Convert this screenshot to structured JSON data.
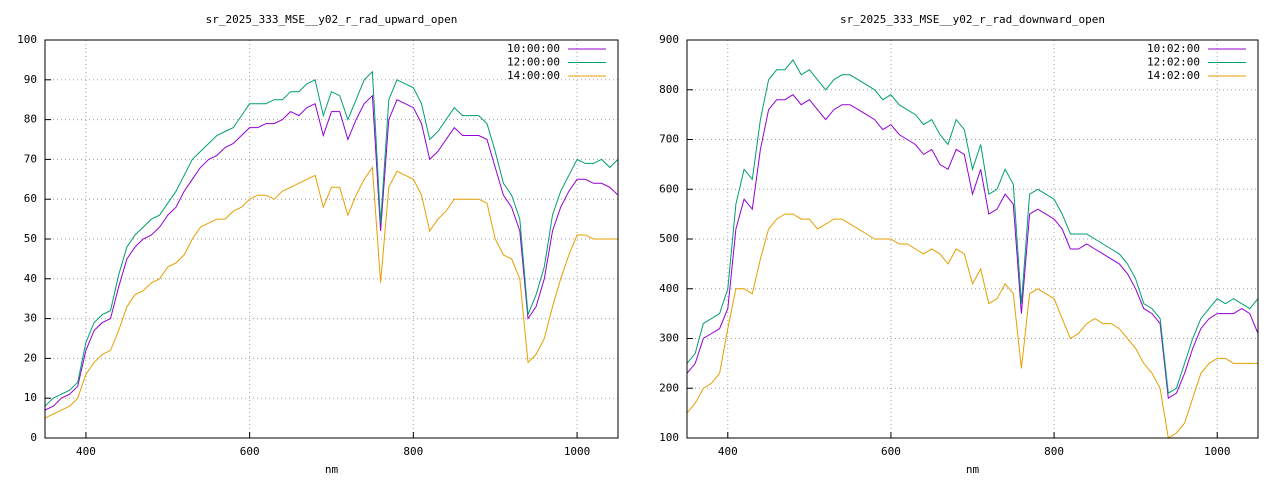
{
  "chart_data": [
    {
      "type": "line",
      "title": "sr_2025_333_MSE__y02_r_rad_upward_open",
      "x_label": "nm",
      "x": [
        350,
        360,
        370,
        380,
        390,
        400,
        410,
        420,
        430,
        440,
        450,
        460,
        470,
        480,
        490,
        500,
        510,
        520,
        530,
        540,
        550,
        560,
        570,
        580,
        590,
        600,
        610,
        620,
        630,
        640,
        650,
        660,
        670,
        680,
        690,
        700,
        710,
        720,
        730,
        740,
        750,
        760,
        770,
        780,
        790,
        800,
        810,
        820,
        830,
        840,
        850,
        860,
        870,
        880,
        890,
        900,
        910,
        920,
        930,
        940,
        950,
        960,
        970,
        980,
        990,
        1000,
        1010,
        1020,
        1030,
        1040,
        1050
      ],
      "xlim": [
        350,
        1050
      ],
      "xticks": [
        400,
        600,
        800,
        1000
      ],
      "ylim": [
        0,
        100
      ],
      "yticks": [
        0,
        10,
        20,
        30,
        40,
        50,
        60,
        70,
        80,
        90,
        100
      ],
      "grid": true,
      "legend": "top-right",
      "series": [
        {
          "name": "10:00:00",
          "color": "#9400d3",
          "values": [
            7,
            8,
            10,
            11,
            13,
            22,
            27,
            29,
            30,
            38,
            45,
            48,
            50,
            51,
            53,
            56,
            58,
            62,
            65,
            68,
            70,
            71,
            73,
            74,
            76,
            78,
            78,
            79,
            79,
            80,
            82,
            81,
            83,
            84,
            76,
            82,
            82,
            75,
            80,
            84,
            86,
            52,
            80,
            85,
            84,
            83,
            79,
            70,
            72,
            75,
            78,
            76,
            76,
            76,
            75,
            68,
            61,
            58,
            52,
            30,
            33,
            40,
            52,
            58,
            62,
            65,
            65,
            64,
            64,
            63,
            61
          ]
        },
        {
          "name": "12:00:00",
          "color": "#009e73",
          "values": [
            8,
            10,
            11,
            12,
            14,
            24,
            29,
            31,
            32,
            41,
            48,
            51,
            53,
            55,
            56,
            59,
            62,
            66,
            70,
            72,
            74,
            76,
            77,
            78,
            81,
            84,
            84,
            84,
            85,
            85,
            87,
            87,
            89,
            90,
            81,
            87,
            86,
            80,
            85,
            90,
            92,
            54,
            85,
            90,
            89,
            88,
            84,
            75,
            77,
            80,
            83,
            81,
            81,
            81,
            79,
            72,
            64,
            61,
            55,
            31,
            36,
            43,
            56,
            62,
            66,
            70,
            69,
            69,
            70,
            68,
            70
          ]
        },
        {
          "name": "14:00:00",
          "color": "#e69f00",
          "values": [
            5,
            6,
            7,
            8,
            10,
            16,
            19,
            21,
            22,
            27,
            33,
            36,
            37,
            39,
            40,
            43,
            44,
            46,
            50,
            53,
            54,
            55,
            55,
            57,
            58,
            60,
            61,
            61,
            60,
            62,
            63,
            64,
            65,
            66,
            58,
            63,
            63,
            56,
            61,
            65,
            68,
            39,
            63,
            67,
            66,
            65,
            61,
            52,
            55,
            57,
            60,
            60,
            60,
            60,
            59,
            50,
            46,
            45,
            40,
            19,
            21,
            25,
            33,
            40,
            46,
            51,
            51,
            50,
            50,
            50,
            50
          ]
        }
      ]
    },
    {
      "type": "line",
      "title": "sr_2025_333_MSE__y02_r_rad_downward_open",
      "x_label": "nm",
      "x": [
        350,
        360,
        370,
        380,
        390,
        400,
        410,
        420,
        430,
        440,
        450,
        460,
        470,
        480,
        490,
        500,
        510,
        520,
        530,
        540,
        550,
        560,
        570,
        580,
        590,
        600,
        610,
        620,
        630,
        640,
        650,
        660,
        670,
        680,
        690,
        700,
        710,
        720,
        730,
        740,
        750,
        760,
        770,
        780,
        790,
        800,
        810,
        820,
        830,
        840,
        850,
        860,
        870,
        880,
        890,
        900,
        910,
        920,
        930,
        940,
        950,
        960,
        970,
        980,
        990,
        1000,
        1010,
        1020,
        1030,
        1040,
        1050
      ],
      "xlim": [
        350,
        1050
      ],
      "xticks": [
        400,
        600,
        800,
        1000
      ],
      "ylim": [
        100,
        900
      ],
      "yticks": [
        100,
        200,
        300,
        400,
        500,
        600,
        700,
        800,
        900
      ],
      "grid": true,
      "legend": "top-right",
      "series": [
        {
          "name": "10:02:00",
          "color": "#9400d3",
          "values": [
            230,
            250,
            300,
            310,
            320,
            360,
            520,
            580,
            560,
            680,
            760,
            780,
            780,
            790,
            770,
            780,
            760,
            740,
            760,
            770,
            770,
            760,
            750,
            740,
            720,
            730,
            710,
            700,
            690,
            670,
            680,
            650,
            640,
            680,
            670,
            590,
            640,
            550,
            560,
            590,
            570,
            350,
            550,
            560,
            550,
            540,
            520,
            480,
            480,
            490,
            480,
            470,
            460,
            450,
            430,
            400,
            360,
            350,
            330,
            180,
            190,
            230,
            280,
            320,
            340,
            350,
            350,
            350,
            360,
            350,
            310
          ]
        },
        {
          "name": "12:02:00",
          "color": "#009e73",
          "values": [
            250,
            270,
            330,
            340,
            350,
            400,
            570,
            640,
            620,
            740,
            820,
            840,
            840,
            860,
            830,
            840,
            820,
            800,
            820,
            830,
            830,
            820,
            810,
            800,
            780,
            790,
            770,
            760,
            750,
            730,
            740,
            710,
            690,
            740,
            720,
            640,
            690,
            590,
            600,
            640,
            610,
            370,
            590,
            600,
            590,
            580,
            550,
            510,
            510,
            510,
            500,
            490,
            480,
            470,
            450,
            420,
            370,
            360,
            340,
            190,
            200,
            250,
            300,
            340,
            360,
            380,
            370,
            380,
            370,
            360,
            380
          ]
        },
        {
          "name": "14:02:00",
          "color": "#e69f00",
          "values": [
            150,
            170,
            200,
            210,
            230,
            320,
            400,
            400,
            390,
            460,
            520,
            540,
            550,
            550,
            540,
            540,
            520,
            530,
            540,
            540,
            530,
            520,
            510,
            500,
            500,
            500,
            490,
            490,
            480,
            470,
            480,
            470,
            450,
            480,
            470,
            410,
            440,
            370,
            380,
            410,
            390,
            240,
            390,
            400,
            390,
            380,
            340,
            300,
            310,
            330,
            340,
            330,
            330,
            320,
            300,
            280,
            250,
            230,
            200,
            100,
            110,
            130,
            180,
            230,
            250,
            260,
            260,
            250,
            250,
            250,
            250
          ]
        }
      ]
    }
  ]
}
